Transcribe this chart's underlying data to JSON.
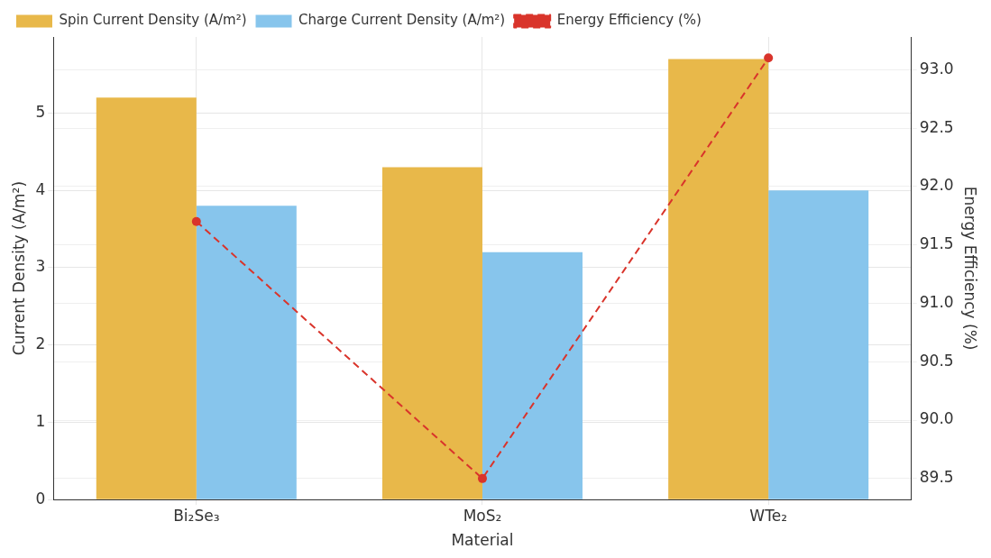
{
  "chart_data": {
    "type": "bar",
    "xlabel": "Material",
    "ylabel": "Current Density (A/m²)",
    "y2label": "Energy Efficiency (%)",
    "categories": [
      "Bi₂Se₃",
      "MoS₂",
      "WTe₂"
    ],
    "series": [
      {
        "name": "Spin Current Density (A/m²)",
        "color": "#e8b84a",
        "values": [
          5.2,
          4.3,
          5.7
        ]
      },
      {
        "name": "Charge Current Density (A/m²)",
        "color": "#87c5ec",
        "values": [
          3.8,
          3.2,
          4.0
        ]
      },
      {
        "name": "Energy Efficiency (%)",
        "type": "line",
        "axis": "y2",
        "color": "#d9342b",
        "values": [
          91.7,
          89.5,
          93.1
        ],
        "marker": "circle",
        "line_style": "dashed"
      }
    ],
    "ylim": [
      0,
      5.985
    ],
    "yticks": [
      0,
      1,
      2,
      3,
      4,
      5
    ],
    "y2lim": [
      89.32,
      93.28
    ],
    "y2ticks": [
      {
        "value": 89.5,
        "label": "89.5"
      },
      {
        "value": 90,
        "label": "90.0"
      },
      {
        "value": 90.5,
        "label": "90.5"
      },
      {
        "value": 91,
        "label": "91.0"
      },
      {
        "value": 91.5,
        "label": "91.5"
      },
      {
        "value": 92,
        "label": "92.0"
      },
      {
        "value": 92.5,
        "label": "92.5"
      },
      {
        "value": 93,
        "label": "93.0"
      }
    ],
    "grid": true,
    "legend": "top left"
  }
}
